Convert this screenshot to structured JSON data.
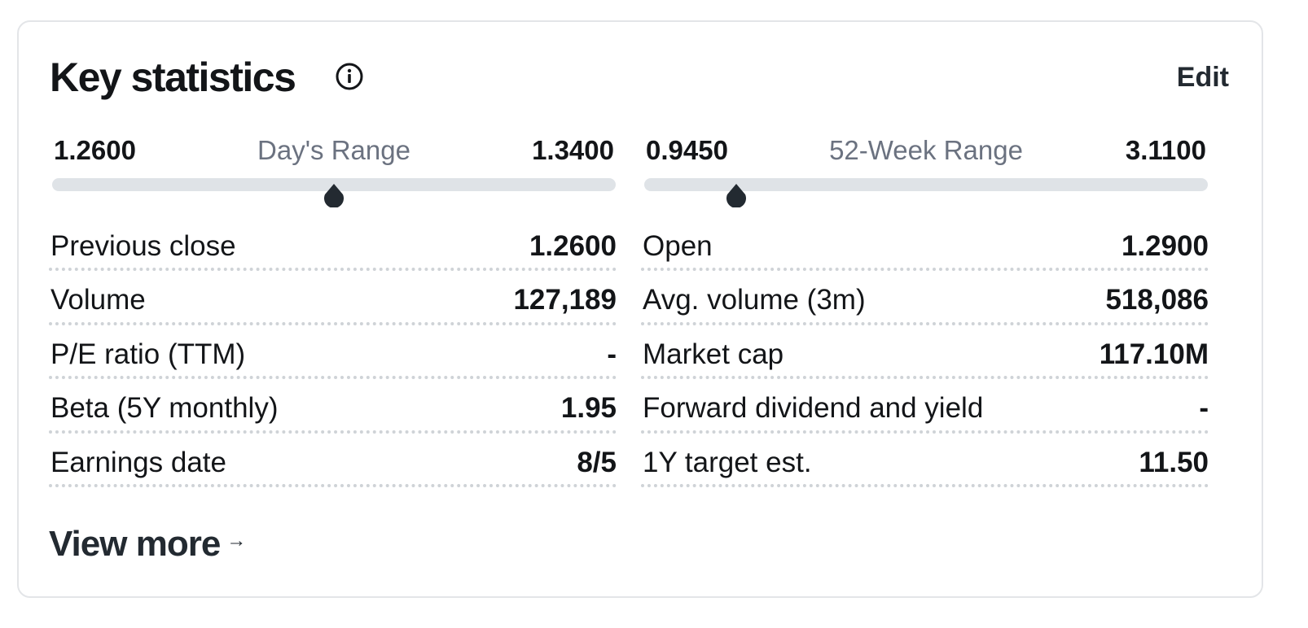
{
  "header": {
    "title": "Key statistics",
    "info_icon": "info-circle-icon",
    "edit_label": "Edit"
  },
  "ranges": [
    {
      "low": "1.2600",
      "label": "Day's Range",
      "high": "1.3400",
      "position_fraction": 0.5
    },
    {
      "low": "0.9450",
      "label": "52-Week Range",
      "high": "3.1100",
      "position_fraction": 0.163
    }
  ],
  "stats_left": [
    {
      "label": "Previous close",
      "value": "1.2600"
    },
    {
      "label": "Volume",
      "value": "127,189"
    },
    {
      "label": "P/E ratio (TTM)",
      "value": "-"
    },
    {
      "label": "Beta (5Y monthly)",
      "value": "1.95"
    },
    {
      "label": "Earnings date",
      "value": "8/5"
    }
  ],
  "stats_right": [
    {
      "label": "Open",
      "value": "1.2900"
    },
    {
      "label": "Avg. volume (3m)",
      "value": "518,086"
    },
    {
      "label": "Market cap",
      "value": "117.10M"
    },
    {
      "label": "Forward dividend and yield",
      "value": "-"
    },
    {
      "label": "1Y target est.",
      "value": "11.50"
    }
  ],
  "footer": {
    "view_more_label": "View more",
    "arrow_glyph": "→",
    "arrow_icon": "arrow-right-icon"
  },
  "colors": {
    "text": "#131518",
    "muted": "#6b7280",
    "track": "#dfe3e7",
    "marker": "#232a31",
    "border": "#e3e5e8"
  }
}
